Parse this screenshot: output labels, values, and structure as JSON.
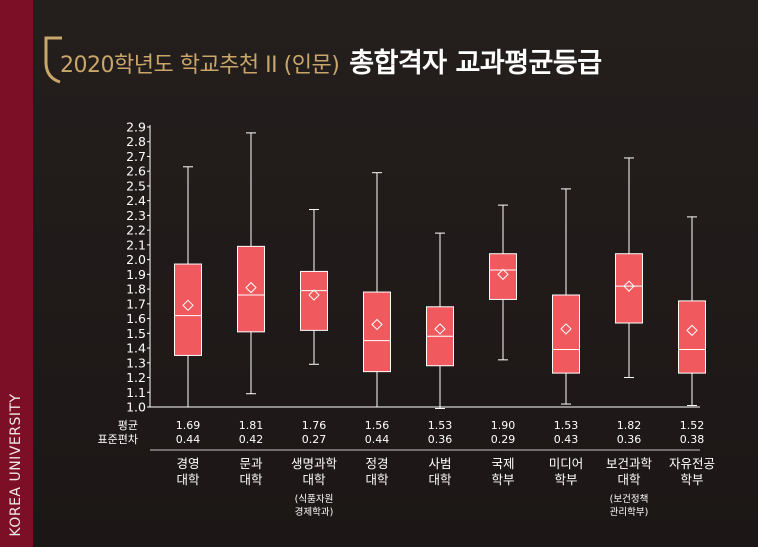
{
  "header": {
    "subtitle": "2020학년도 학교추천 II (인문)",
    "title": "총합격자 교과평균등급"
  },
  "sidebar": {
    "label": "KOREA UNIVERSITY"
  },
  "colors": {
    "box": "#f05a5f",
    "accent": "#c9a66a",
    "sidebar": "#7c0f26"
  },
  "chart_data": {
    "type": "boxplot",
    "y_ticks": [
      "2.9",
      "2.8",
      "2.7",
      "2.6",
      "2.5",
      "2.4",
      "2.3",
      "2.2",
      "2.1",
      "2.0",
      "1.9",
      "1.8",
      "1.7",
      "1.6",
      "1.5",
      "1.4",
      "1.3",
      "1.2",
      "1.1",
      "1.0"
    ],
    "ylim": [
      1.0,
      2.9
    ],
    "stat_labels": [
      "평균",
      "표준편차"
    ],
    "categories": [
      {
        "name_lines": [
          "경영",
          "대학"
        ],
        "note_lines": [],
        "min": 1.0,
        "q1": 1.35,
        "median": 1.62,
        "q3": 1.97,
        "max": 2.63,
        "mean": 1.69,
        "std": 0.44,
        "mean_label": "1.69",
        "std_label": "0.44"
      },
      {
        "name_lines": [
          "문과",
          "대학"
        ],
        "note_lines": [],
        "min": 1.09,
        "q1": 1.51,
        "median": 1.76,
        "q3": 2.09,
        "max": 2.86,
        "mean": 1.81,
        "std": 0.42,
        "mean_label": "1.81",
        "std_label": "0.42"
      },
      {
        "name_lines": [
          "생명과학",
          "대학"
        ],
        "note_lines": [
          "(식품자원",
          "경제학과)"
        ],
        "min": 1.29,
        "q1": 1.52,
        "median": 1.79,
        "q3": 1.92,
        "max": 2.34,
        "mean": 1.76,
        "std": 0.27,
        "mean_label": "1.76",
        "std_label": "0.27"
      },
      {
        "name_lines": [
          "정경",
          "대학"
        ],
        "note_lines": [],
        "min": 1.0,
        "q1": 1.24,
        "median": 1.45,
        "q3": 1.78,
        "max": 2.59,
        "mean": 1.56,
        "std": 0.44,
        "mean_label": "1.56",
        "std_label": "0.44"
      },
      {
        "name_lines": [
          "사범",
          "대학"
        ],
        "note_lines": [],
        "min": 0.99,
        "q1": 1.28,
        "median": 1.48,
        "q3": 1.68,
        "max": 2.18,
        "mean": 1.53,
        "std": 0.36,
        "mean_label": "1.53",
        "std_label": "0.36"
      },
      {
        "name_lines": [
          "국제",
          "학부"
        ],
        "note_lines": [],
        "min": 1.32,
        "q1": 1.73,
        "median": 1.93,
        "q3": 2.04,
        "max": 2.37,
        "mean": 1.9,
        "std": 0.29,
        "mean_label": "1.90",
        "std_label": "0.29"
      },
      {
        "name_lines": [
          "미디어",
          "학부"
        ],
        "note_lines": [],
        "min": 1.02,
        "q1": 1.23,
        "median": 1.39,
        "q3": 1.76,
        "max": 2.48,
        "mean": 1.53,
        "std": 0.43,
        "mean_label": "1.53",
        "std_label": "0.43"
      },
      {
        "name_lines": [
          "보건과학",
          "대학"
        ],
        "note_lines": [
          "(보건정책",
          "관리학부)"
        ],
        "min": 1.2,
        "q1": 1.57,
        "median": 1.82,
        "q3": 2.04,
        "max": 2.69,
        "mean": 1.82,
        "std": 0.36,
        "mean_label": "1.82",
        "std_label": "0.36"
      },
      {
        "name_lines": [
          "자유전공",
          "학부"
        ],
        "note_lines": [],
        "min": 1.01,
        "q1": 1.23,
        "median": 1.39,
        "q3": 1.72,
        "max": 2.29,
        "mean": 1.52,
        "std": 0.38,
        "mean_label": "1.52",
        "std_label": "0.38"
      }
    ]
  }
}
